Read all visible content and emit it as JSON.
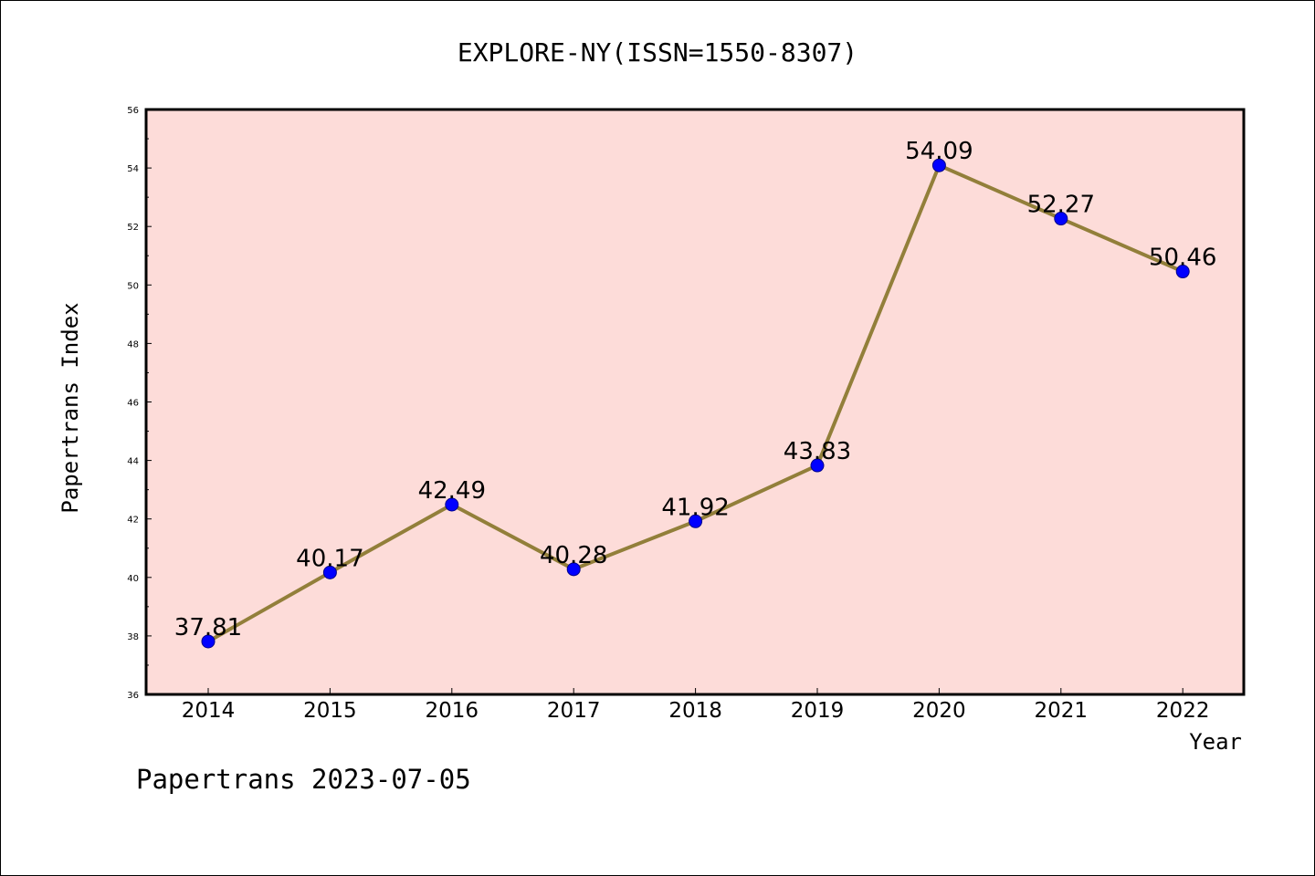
{
  "chart_data": {
    "type": "line",
    "title": "EXPLORE-NY(ISSN=1550-8307)",
    "xlabel": "Year",
    "ylabel": "Papertrans Index",
    "categories": [
      "2014",
      "2015",
      "2016",
      "2017",
      "2018",
      "2019",
      "2020",
      "2021",
      "2022"
    ],
    "series": [
      {
        "values": [
          37.81,
          40.17,
          42.49,
          40.28,
          41.92,
          43.83,
          54.09,
          52.27,
          50.46
        ],
        "labels": [
          "37.81",
          "40.17",
          "42.49",
          "40.28",
          "41.92",
          "43.83",
          "54.09",
          "52.27",
          "50.46"
        ]
      }
    ],
    "ylim": [
      36,
      56
    ],
    "yticks": [
      36,
      38,
      40,
      42,
      44,
      46,
      48,
      50,
      52,
      54,
      56
    ],
    "grid": false,
    "legend": "none",
    "colors": {
      "plot_background": "#fddcd9",
      "line": "#927f3a",
      "marker": "#0000ff",
      "marker_edge": "#00008b"
    }
  },
  "footer": {
    "text": "Papertrans 2023-07-05"
  }
}
